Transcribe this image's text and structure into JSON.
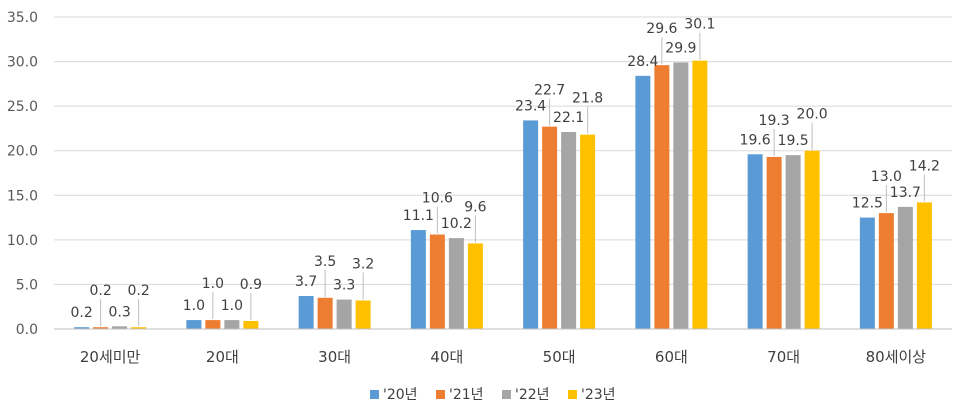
{
  "chart_data": {
    "type": "bar",
    "categories": [
      "20세미만",
      "20대",
      "30대",
      "40대",
      "50대",
      "60대",
      "70대",
      "80세이상"
    ],
    "series": [
      {
        "name": "'20년",
        "color": "#5B9BD5",
        "values": [
          0.2,
          1.0,
          3.7,
          11.1,
          23.4,
          28.4,
          19.6,
          12.5
        ]
      },
      {
        "name": "'21년",
        "color": "#ED7D31",
        "values": [
          0.2,
          1.0,
          3.5,
          10.6,
          22.7,
          29.6,
          19.3,
          13.0
        ]
      },
      {
        "name": "'22년",
        "color": "#A5A5A5",
        "values": [
          0.3,
          1.0,
          3.3,
          10.2,
          22.1,
          29.9,
          19.5,
          13.7
        ]
      },
      {
        "name": "'23년",
        "color": "#FFC000",
        "values": [
          0.2,
          0.9,
          3.2,
          9.6,
          21.8,
          30.1,
          20.0,
          14.2
        ]
      }
    ],
    "ylim": [
      0,
      35
    ],
    "yticks": [
      "0.0",
      "5.0",
      "10.0",
      "15.0",
      "20.0",
      "25.0",
      "30.0",
      "35.0"
    ],
    "grid": true,
    "legend": "bottom",
    "title": "",
    "xlabel": "",
    "ylabel": ""
  }
}
